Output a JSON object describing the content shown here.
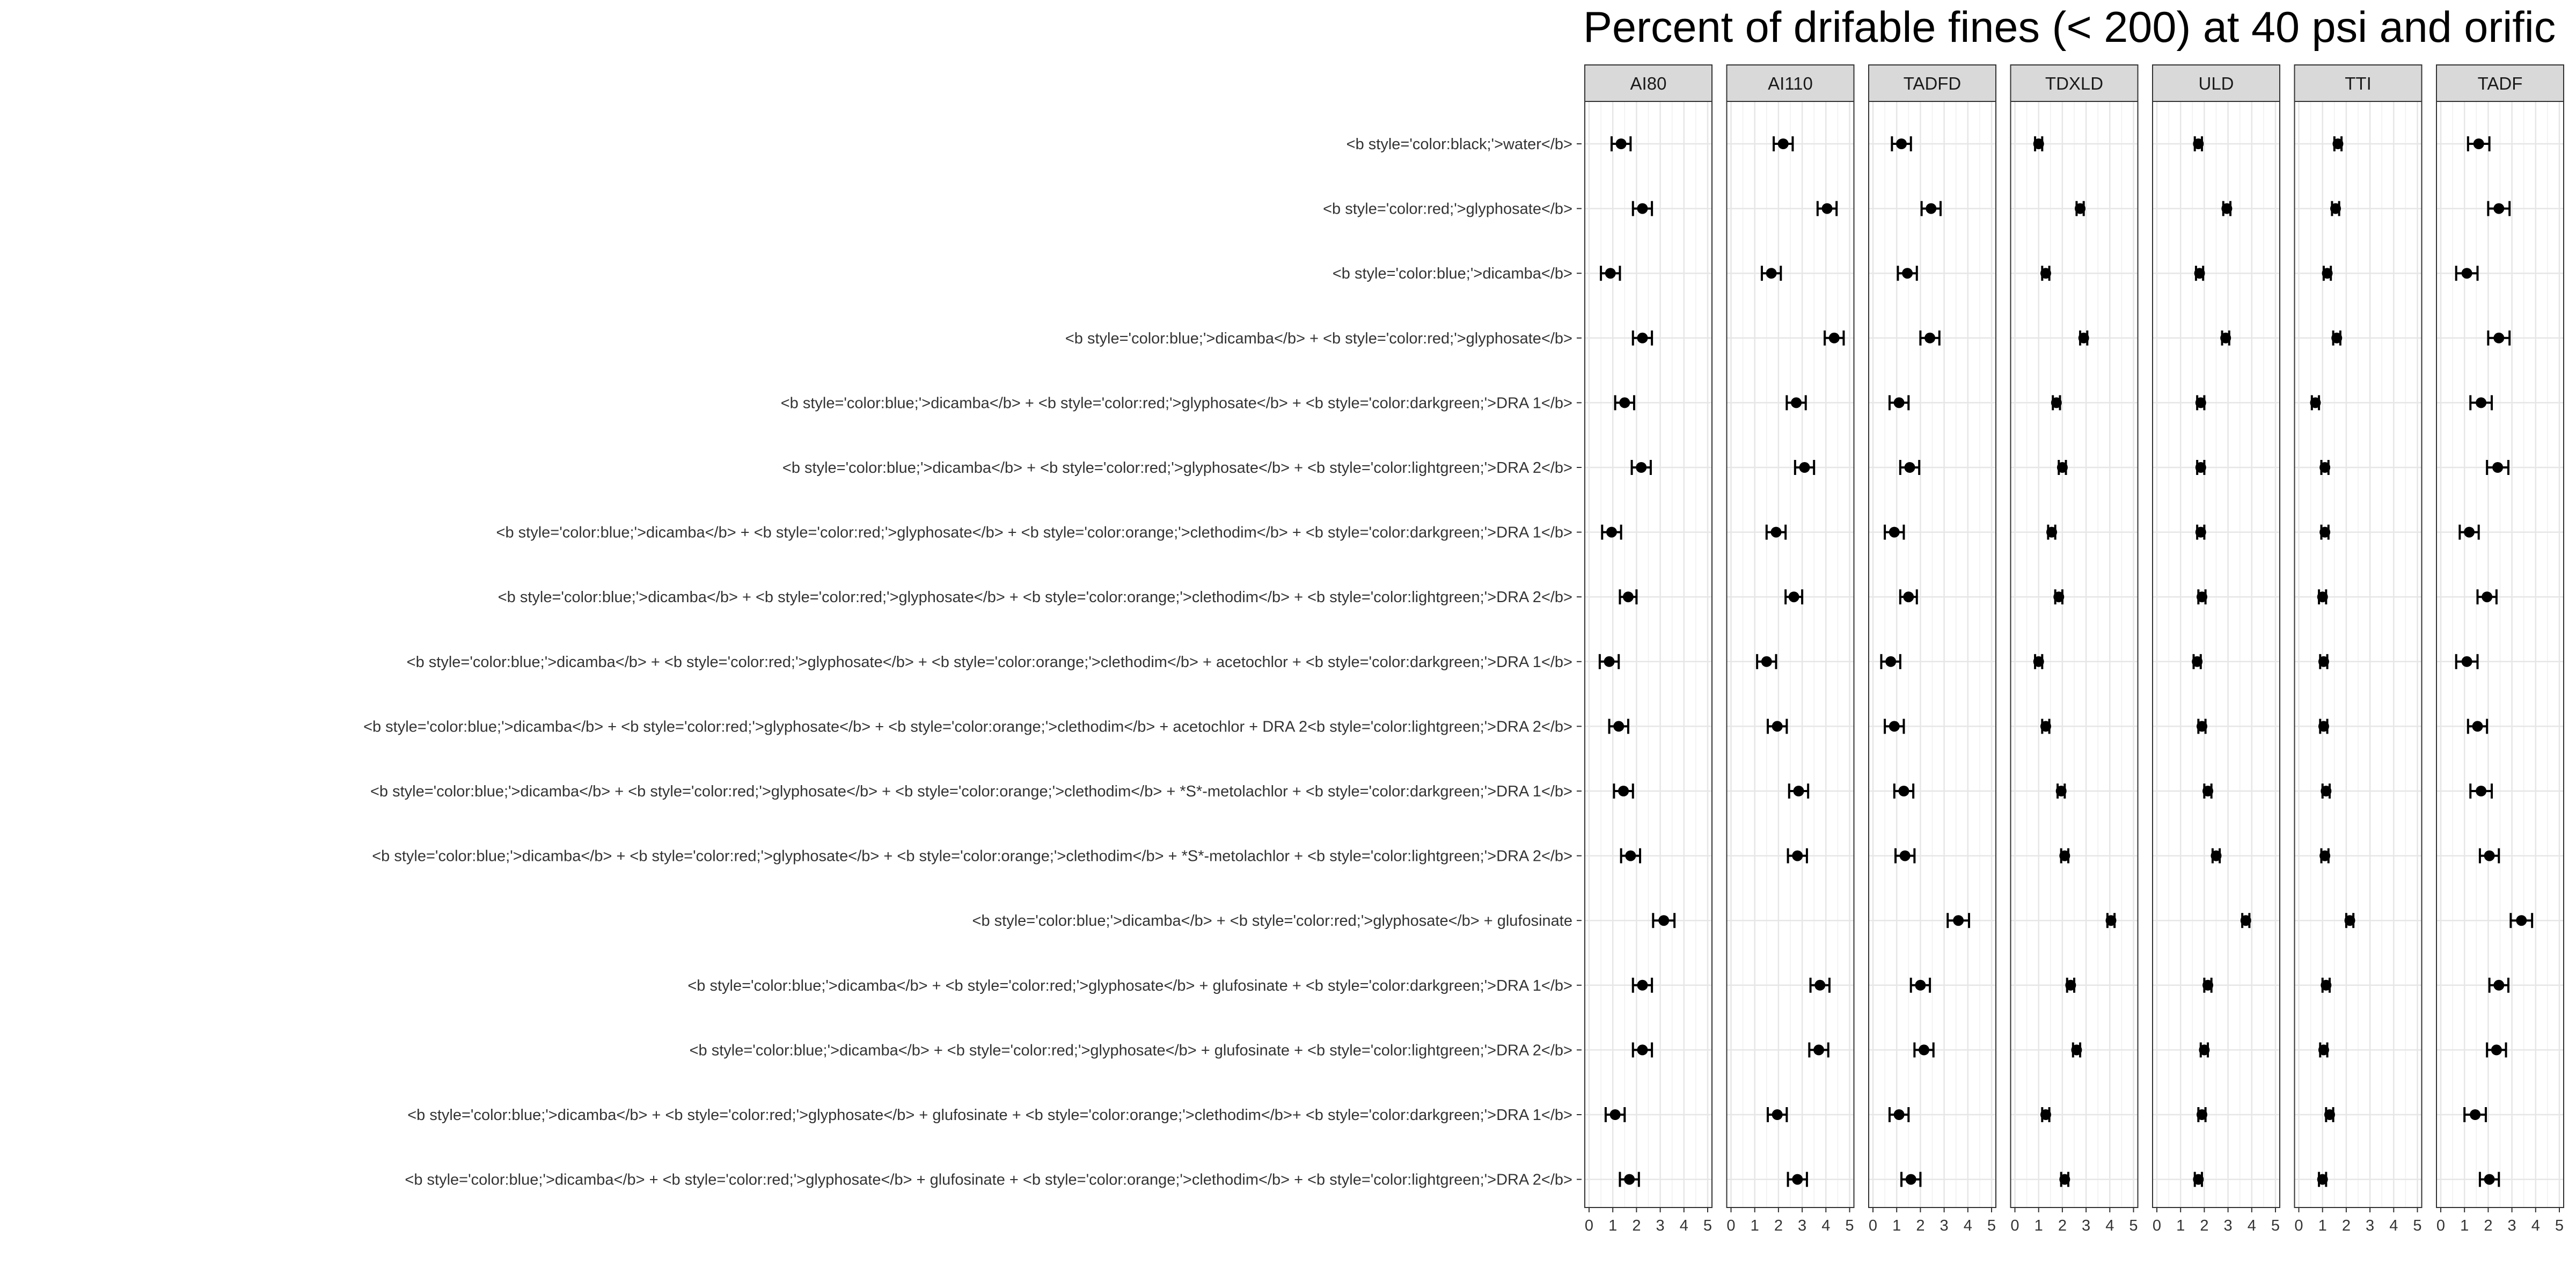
{
  "chart_data": {
    "type": "scatter",
    "title": "Percent of drifable fines (< 200) at 40 psi and orific",
    "xlim": [
      0,
      5
    ],
    "xticks": [
      "0",
      "1",
      "2",
      "3",
      "4",
      "5"
    ],
    "grid": true,
    "error_bars": true,
    "facets": [
      "AI80",
      "AI110",
      "TADFD",
      "TDXLD",
      "ULD",
      "TTI",
      "TADF"
    ],
    "categories": [
      "<b style='color:black;'>water</b>",
      "<b style='color:red;'>glyphosate</b>",
      "<b style='color:blue;'>dicamba</b>",
      "<b style='color:blue;'>dicamba</b> + <b style='color:red;'>glyphosate</b>",
      "<b style='color:blue;'>dicamba</b> + <b style='color:red;'>glyphosate</b> + <b style='color:darkgreen;'>DRA 1</b>",
      "<b style='color:blue;'>dicamba</b> + <b style='color:red;'>glyphosate</b> + <b style='color:lightgreen;'>DRA 2</b>",
      "<b style='color:blue;'>dicamba</b> + <b style='color:red;'>glyphosate</b> + <b style='color:orange;'>clethodim</b> + <b style='color:darkgreen;'>DRA 1</b>",
      "<b style='color:blue;'>dicamba</b> + <b style='color:red;'>glyphosate</b> + <b style='color:orange;'>clethodim</b> + <b style='color:lightgreen;'>DRA 2</b>",
      "<b style='color:blue;'>dicamba</b> + <b style='color:red;'>glyphosate</b> + <b style='color:orange;'>clethodim</b> + acetochlor + <b style='color:darkgreen;'>DRA 1</b>",
      "<b style='color:blue;'>dicamba</b> + <b style='color:red;'>glyphosate</b> + <b style='color:orange;'>clethodim</b> + acetochlor + DRA 2<b style='color:lightgreen;'>DRA 2</b>",
      "<b style='color:blue;'>dicamba</b> + <b style='color:red;'>glyphosate</b> + <b style='color:orange;'>clethodim</b> + *S*-metolachlor + <b style='color:darkgreen;'>DRA 1</b>",
      "<b style='color:blue;'>dicamba</b> + <b style='color:red;'>glyphosate</b> + <b style='color:orange;'>clethodim</b> + *S*-metolachlor + <b style='color:lightgreen;'>DRA 2</b>",
      "<b style='color:blue;'>dicamba</b> + <b style='color:red;'>glyphosate</b> + glufosinate",
      "<b style='color:blue;'>dicamba</b> + <b style='color:red;'>glyphosate</b> + glufosinate + <b style='color:darkgreen;'>DRA 1</b>",
      "<b style='color:blue;'>dicamba</b> + <b style='color:red;'>glyphosate</b> + glufosinate + <b style='color:lightgreen;'>DRA 2</b>",
      "<b style='color:blue;'>dicamba</b> + <b style='color:red;'>glyphosate</b> + glufosinate + <b style='color:orange;'>clethodim</b>+ <b style='color:darkgreen;'>DRA 1</b>",
      "<b style='color:blue;'>dicamba</b> + <b style='color:red;'>glyphosate</b> + glufosinate + <b style='color:orange;'>clethodim</b> + <b style='color:lightgreen;'>DRA 2</b>"
    ],
    "series": [
      {
        "facet": "AI80",
        "values": [
          1.35,
          2.25,
          0.9,
          2.25,
          1.5,
          2.2,
          0.95,
          1.65,
          0.85,
          1.25,
          1.45,
          1.75,
          3.15,
          2.25,
          2.25,
          1.1,
          1.7
        ],
        "errors": [
          0.4,
          0.4,
          0.4,
          0.4,
          0.4,
          0.4,
          0.4,
          0.35,
          0.4,
          0.4,
          0.4,
          0.4,
          0.45,
          0.4,
          0.4,
          0.4,
          0.4
        ]
      },
      {
        "facet": "AI110",
        "values": [
          2.2,
          4.05,
          1.7,
          4.35,
          2.75,
          3.1,
          1.9,
          2.65,
          1.5,
          1.95,
          2.85,
          2.8,
          null,
          3.75,
          3.7,
          1.95,
          2.8
        ],
        "errors": [
          0.4,
          0.4,
          0.4,
          0.4,
          0.4,
          0.4,
          0.4,
          0.35,
          0.4,
          0.4,
          0.4,
          0.4,
          0,
          0.4,
          0.4,
          0.4,
          0.4
        ]
      },
      {
        "facet": "TADFD",
        "values": [
          1.2,
          2.45,
          1.45,
          2.4,
          1.1,
          1.55,
          0.9,
          1.5,
          0.75,
          0.9,
          1.3,
          1.35,
          3.6,
          2.0,
          2.15,
          1.1,
          1.6
        ],
        "errors": [
          0.4,
          0.4,
          0.4,
          0.4,
          0.4,
          0.4,
          0.4,
          0.35,
          0.4,
          0.4,
          0.4,
          0.4,
          0.45,
          0.4,
          0.4,
          0.4,
          0.4
        ]
      },
      {
        "facet": "TDXLD",
        "values": [
          1.0,
          2.75,
          1.3,
          2.9,
          1.75,
          2.0,
          1.55,
          1.85,
          1.0,
          1.3,
          1.95,
          2.1,
          4.05,
          2.35,
          2.6,
          1.3,
          2.1
        ],
        "errors": [
          0.15,
          0.15,
          0.15,
          0.15,
          0.15,
          0.15,
          0.15,
          0.15,
          0.15,
          0.15,
          0.15,
          0.15,
          0.15,
          0.15,
          0.15,
          0.15,
          0.15
        ]
      },
      {
        "facet": "ULD",
        "values": [
          1.75,
          2.95,
          1.8,
          2.9,
          1.85,
          1.85,
          1.85,
          1.9,
          1.7,
          1.9,
          2.15,
          2.5,
          3.75,
          2.15,
          2.0,
          1.9,
          1.75
        ],
        "errors": [
          0.15,
          0.15,
          0.15,
          0.15,
          0.15,
          0.15,
          0.15,
          0.15,
          0.15,
          0.15,
          0.15,
          0.15,
          0.15,
          0.15,
          0.15,
          0.15,
          0.15
        ]
      },
      {
        "facet": "TTI",
        "values": [
          1.65,
          1.55,
          1.2,
          1.6,
          0.7,
          1.1,
          1.1,
          1.0,
          1.05,
          1.05,
          1.15,
          1.1,
          2.15,
          1.15,
          1.05,
          1.3,
          1.0
        ],
        "errors": [
          0.15,
          0.15,
          0.15,
          0.15,
          0.15,
          0.15,
          0.15,
          0.15,
          0.15,
          0.15,
          0.15,
          0.15,
          0.15,
          0.15,
          0.15,
          0.15,
          0.15
        ]
      },
      {
        "facet": "TADF",
        "values": [
          1.6,
          2.45,
          1.1,
          2.45,
          1.7,
          2.4,
          1.2,
          1.95,
          1.1,
          1.55,
          1.7,
          2.05,
          3.4,
          2.45,
          2.35,
          1.45,
          2.05
        ],
        "errors": [
          0.45,
          0.45,
          0.45,
          0.45,
          0.45,
          0.45,
          0.4,
          0.4,
          0.45,
          0.4,
          0.45,
          0.4,
          0.45,
          0.4,
          0.4,
          0.45,
          0.4
        ]
      }
    ]
  }
}
